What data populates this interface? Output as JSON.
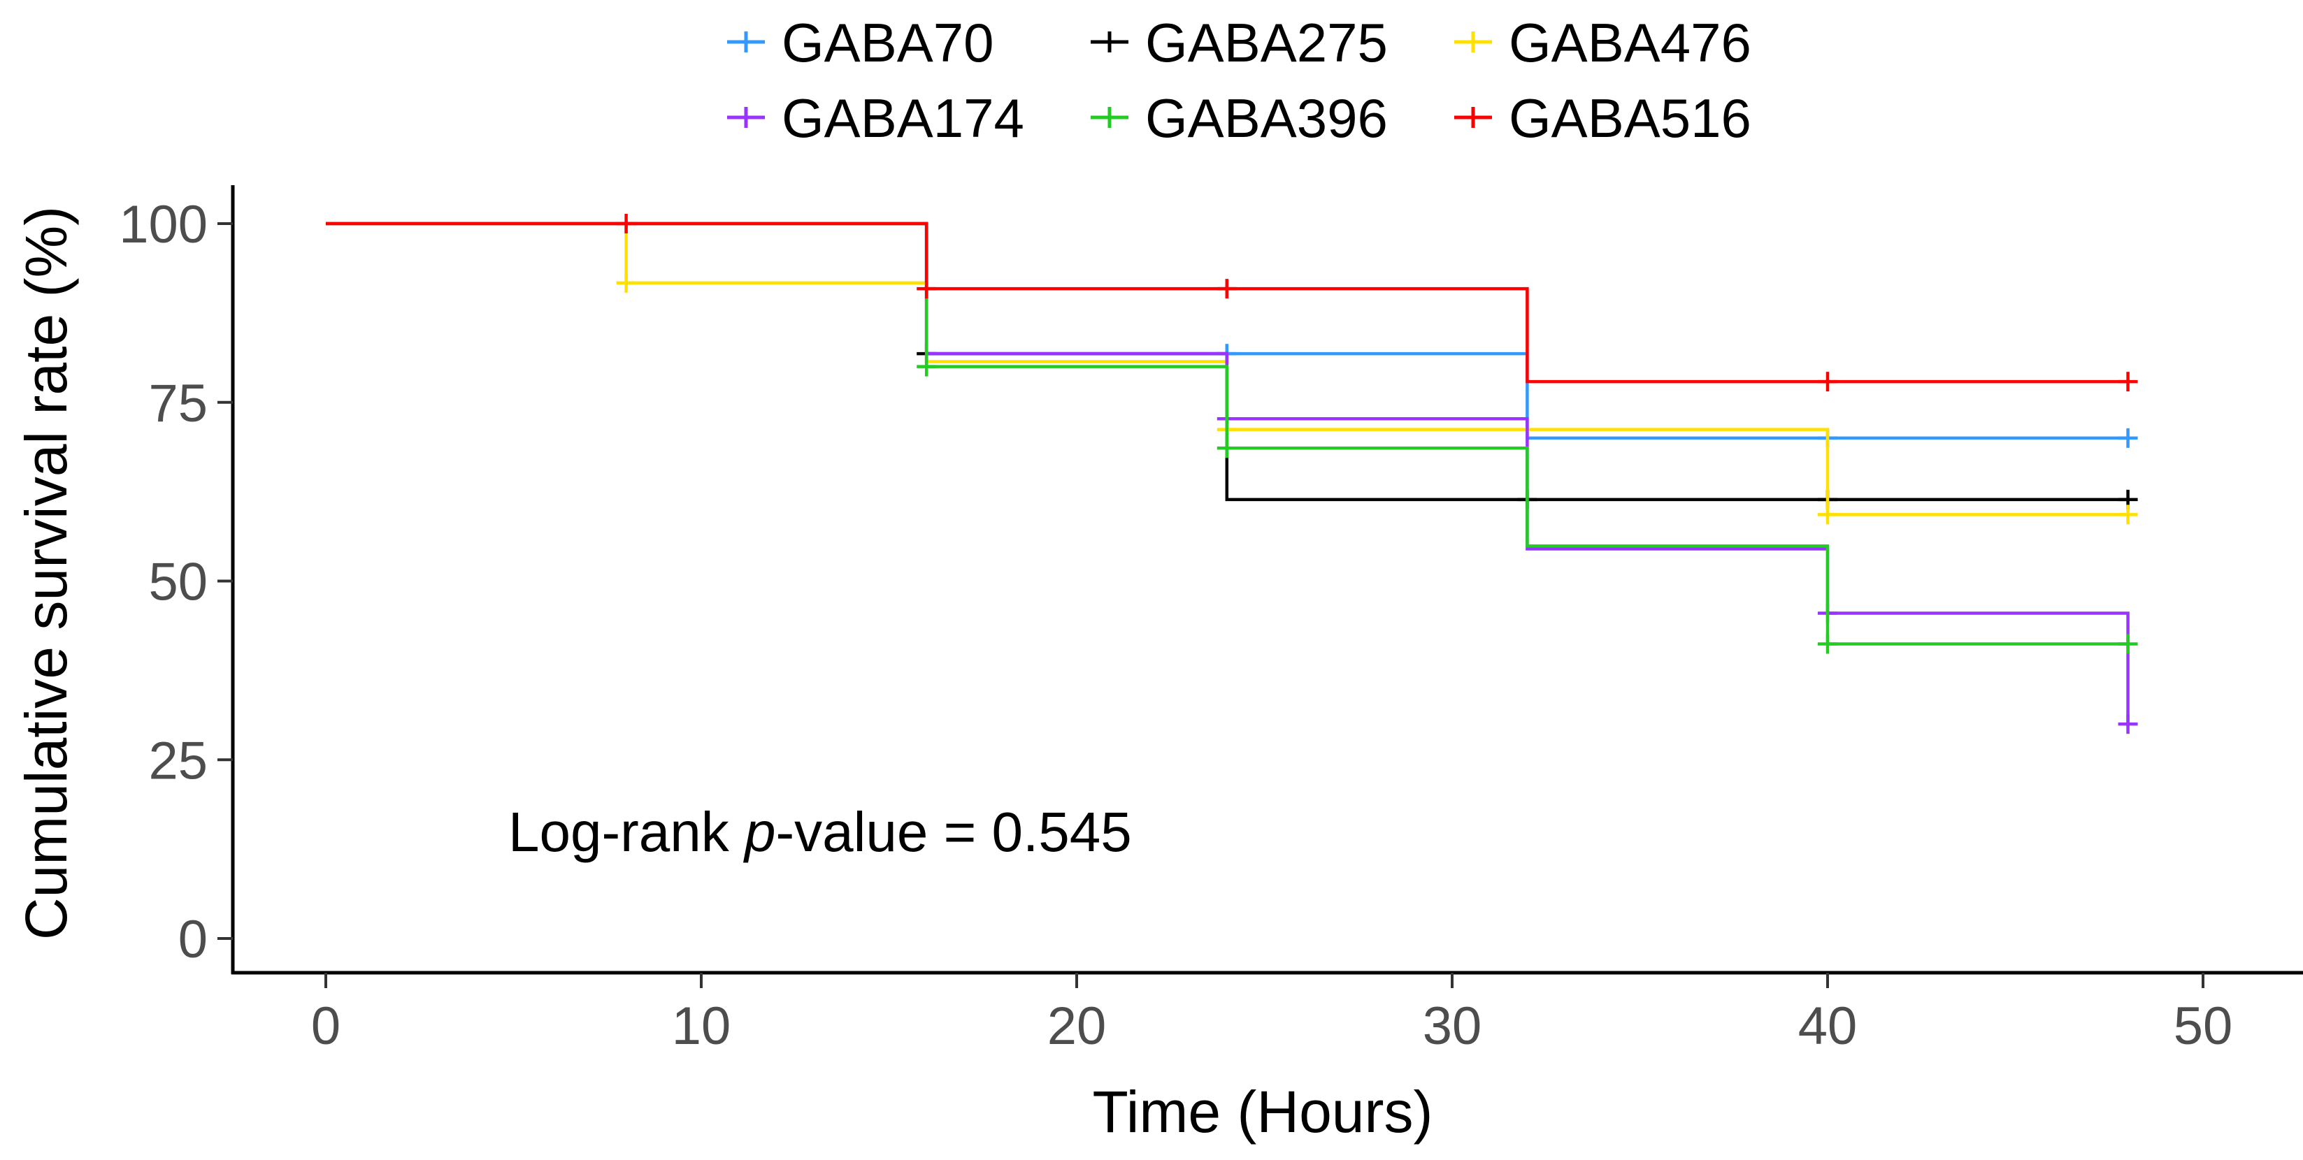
{
  "chart_data": {
    "type": "line",
    "subtype": "kaplan-meier-step",
    "title": "",
    "xlabel": "Time (Hours)",
    "ylabel": "Cumulative survival rate (%)",
    "xlim": [
      -1.5,
      52.5
    ],
    "ylim": [
      -5,
      105
    ],
    "xticks": [
      0,
      10,
      20,
      30,
      40,
      50
    ],
    "xtick_labels": [
      "0",
      "10",
      "20",
      "30",
      "40",
      "50"
    ],
    "yticks": [
      0,
      25,
      50,
      75,
      100
    ],
    "ytick_labels": [
      "0",
      "25",
      "50",
      "75",
      "100"
    ],
    "grid": false,
    "legend_position": "top",
    "legend": [
      "GABA70",
      "GABA275",
      "GABA476",
      "GABA174",
      "GABA396",
      "GABA516"
    ],
    "annotation": {
      "prefix": "Log-rank ",
      "italic": "p",
      "suffix": "-value = 0.545"
    },
    "series": [
      {
        "name": "GABA70",
        "color": "#3399ff",
        "times": [
          0,
          16,
          32
        ],
        "survival": [
          100,
          81.8,
          70.0
        ],
        "censored": [
          [
            24,
            81.8
          ],
          [
            40,
            70.0
          ],
          [
            48,
            70.0
          ]
        ]
      },
      {
        "name": "GABA275",
        "color": "#000000",
        "times": [
          0,
          16,
          24
        ],
        "survival": [
          100,
          81.8,
          61.4
        ],
        "censored": [
          [
            16,
            81.8
          ],
          [
            32,
            61.4
          ],
          [
            40,
            61.4
          ],
          [
            48,
            61.4
          ]
        ]
      },
      {
        "name": "GABA476",
        "color": "#ffe000",
        "times": [
          0,
          8,
          16,
          24,
          40
        ],
        "survival": [
          100,
          91.7,
          80.7,
          71.2,
          59.3
        ],
        "censored": [
          [
            8,
            91.7
          ],
          [
            24,
            71.2
          ],
          [
            40,
            59.3
          ],
          [
            48,
            59.3
          ]
        ]
      },
      {
        "name": "GABA174",
        "color": "#9933ff",
        "times": [
          0,
          16,
          24,
          32,
          40,
          48
        ],
        "survival": [
          100,
          81.8,
          72.7,
          54.5,
          45.5,
          30.0
        ],
        "censored": [
          [
            24,
            72.7
          ],
          [
            40,
            45.5
          ],
          [
            48,
            30.0
          ]
        ]
      },
      {
        "name": "GABA396",
        "color": "#22cc22",
        "times": [
          0,
          16,
          24,
          32,
          40
        ],
        "survival": [
          100,
          80.0,
          68.6,
          54.9,
          41.2
        ],
        "censored": [
          [
            16,
            80.0
          ],
          [
            24,
            68.6
          ],
          [
            40,
            41.2
          ],
          [
            48,
            41.2
          ]
        ]
      },
      {
        "name": "GABA516",
        "color": "#ff0000",
        "times": [
          0,
          16,
          32
        ],
        "survival": [
          100,
          90.9,
          77.9
        ],
        "censored": [
          [
            8,
            100
          ],
          [
            16,
            90.9
          ],
          [
            24,
            90.9
          ],
          [
            40,
            77.9
          ],
          [
            48,
            77.9
          ]
        ]
      }
    ]
  }
}
